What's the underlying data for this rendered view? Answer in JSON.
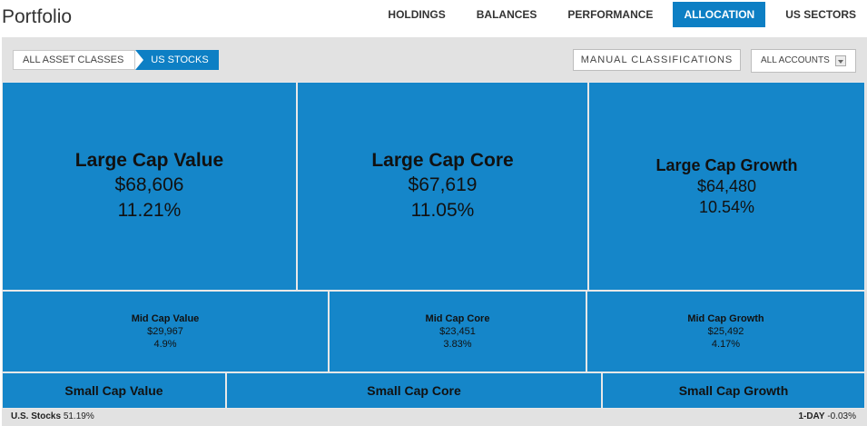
{
  "header": {
    "title": "Portfolio"
  },
  "nav": {
    "tabs": [
      {
        "label": "HOLDINGS"
      },
      {
        "label": "BALANCES"
      },
      {
        "label": "PERFORMANCE"
      },
      {
        "label": "ALLOCATION",
        "active": true
      },
      {
        "label": "US SECTORS"
      }
    ]
  },
  "toolbar": {
    "breadcrumb": [
      "ALL ASSET CLASSES",
      "US STOCKS"
    ],
    "manual_label": "MANUAL CLASSIFICATIONS",
    "accounts_label": "ALL ACCOUNTS"
  },
  "colors": {
    "accent": "#0d7fc4",
    "tile": "#1586c9",
    "panel": "#e2e2e2"
  },
  "treemap": {
    "large": [
      {
        "name": "Large Cap Value",
        "value": "$68,606",
        "pct": "11.21%"
      },
      {
        "name": "Large Cap Core",
        "value": "$67,619",
        "pct": "11.05%"
      },
      {
        "name": "Large Cap Growth",
        "value": "$64,480",
        "pct": "10.54%"
      }
    ],
    "mid": [
      {
        "name": "Mid Cap Value",
        "value": "$29,967",
        "pct": "4.9%"
      },
      {
        "name": "Mid Cap Core",
        "value": "$23,451",
        "pct": "3.83%"
      },
      {
        "name": "Mid Cap Growth",
        "value": "$25,492",
        "pct": "4.17%"
      }
    ],
    "small": [
      {
        "name": "Small Cap Value"
      },
      {
        "name": "Small Cap Core"
      },
      {
        "name": "Small Cap Growth"
      }
    ]
  },
  "footer": {
    "total_label": "U.S. Stocks",
    "total_pct": "51.19%",
    "change_label": "1-DAY",
    "change_value": "-0.03%"
  }
}
